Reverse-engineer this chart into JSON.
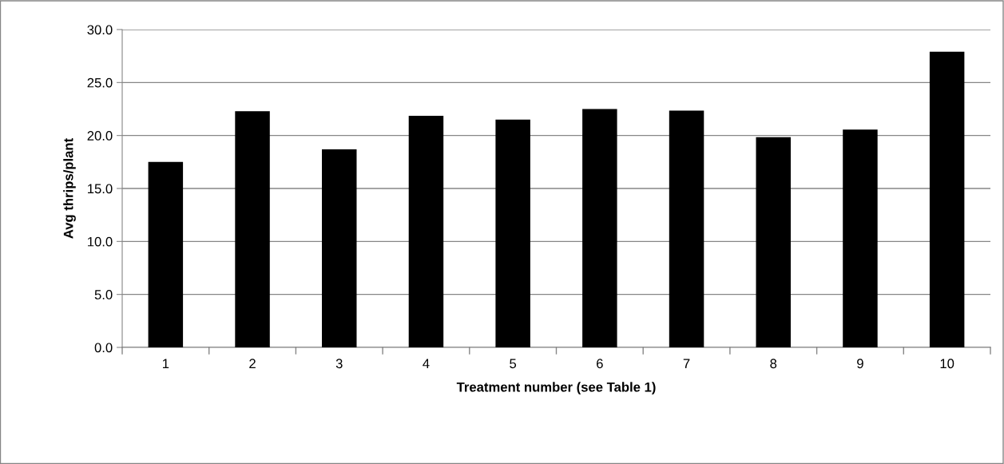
{
  "chart_data": {
    "type": "bar",
    "xlabel": "Treatment number (see Table 1)",
    "ylabel": "Avg thrips/plant",
    "categories": [
      "1",
      "2",
      "3",
      "4",
      "5",
      "6",
      "7",
      "8",
      "9",
      "10"
    ],
    "values": [
      17.5,
      22.3,
      18.7,
      21.85,
      21.5,
      22.5,
      22.35,
      19.85,
      20.55,
      27.9
    ],
    "color": "#000000",
    "ylim": [
      0,
      30
    ],
    "yticks": [
      {
        "value": 0,
        "label": "0.0"
      },
      {
        "value": 5,
        "label": "5.0"
      },
      {
        "value": 10,
        "label": "10.0"
      },
      {
        "value": 15,
        "label": "15.0"
      },
      {
        "value": 20,
        "label": "20.0"
      },
      {
        "value": 25,
        "label": "25.0"
      },
      {
        "value": 30,
        "label": "30.0"
      }
    ],
    "grid": "y",
    "legend": false
  }
}
